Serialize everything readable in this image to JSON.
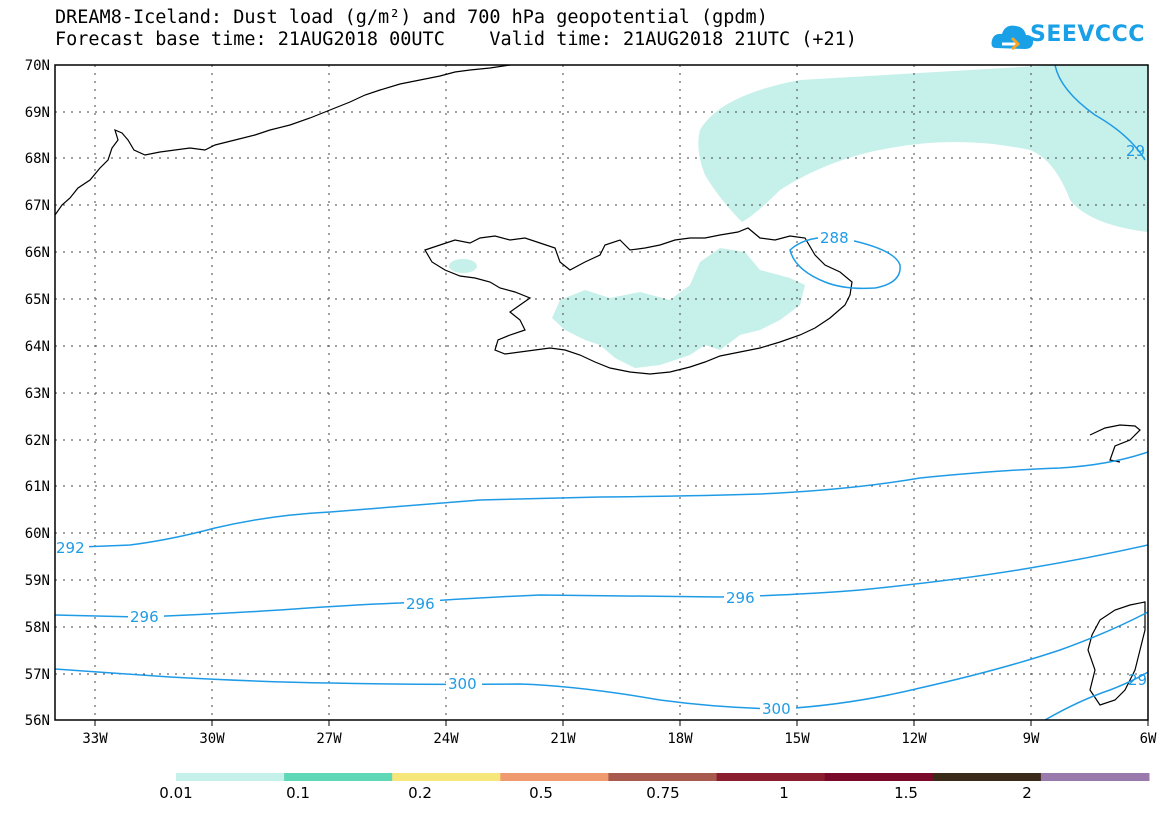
{
  "header": {
    "title_line1": "DREAM8-Iceland: Dust load (g/m²) and 700 hPa geopotential (gpdm)",
    "title_line2": "Forecast base time: 21AUG2018 00UTC    Valid time: 21AUG2018 21UTC (+21)"
  },
  "logo": {
    "text": "SEEVCCC",
    "icon": "cloud-icon"
  },
  "colors": {
    "contour": "#1f9be6",
    "coast": "#000000",
    "dust_low": "#c6f0ea"
  },
  "axes": {
    "lat_labels": [
      "70N",
      "69N",
      "68N",
      "67N",
      "66N",
      "65N",
      "64N",
      "63N",
      "62N",
      "61N",
      "60N",
      "59N",
      "58N",
      "57N",
      "56N"
    ],
    "lon_labels": [
      "33W",
      "30W",
      "27W",
      "24W",
      "21W",
      "18W",
      "15W",
      "12W",
      "9W",
      "6W"
    ]
  },
  "contours": [
    {
      "label": "292",
      "value": 292
    },
    {
      "label": "296",
      "value": 296
    },
    {
      "label": "300",
      "value": 300
    },
    {
      "label": "288",
      "value": 288
    }
  ],
  "contour_labels": {
    "l292": "292",
    "l296a": "296",
    "l296b": "296",
    "l296c": "296",
    "l300a": "300",
    "l300b": "300",
    "l288": "288",
    "l29ne": "29",
    "l29se": "29"
  },
  "colorbar": {
    "colors": [
      "#c6f0ea",
      "#5fd8b8",
      "#f7e77b",
      "#f09a70",
      "#a85a4e",
      "#8a1d2e",
      "#7a0a2a",
      "#3a2a1a",
      "#9a7aac"
    ],
    "labels": [
      "0.01",
      "0.1",
      "0.2",
      "0.5",
      "0.75",
      "1",
      "1.5",
      "2"
    ]
  }
}
